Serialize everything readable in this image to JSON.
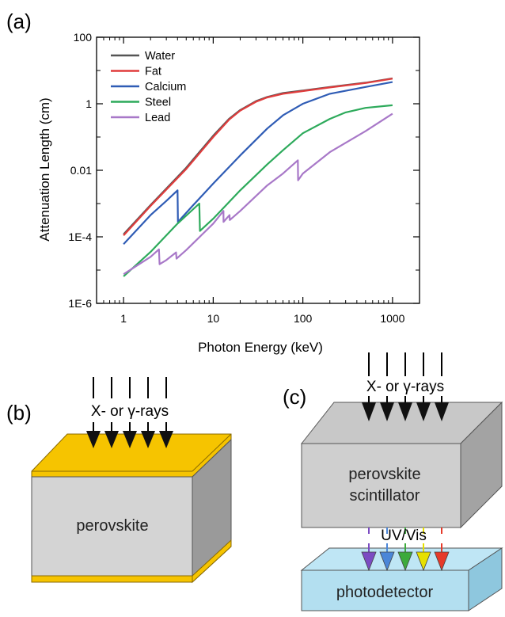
{
  "panels": {
    "a": "(a)",
    "b": "(b)",
    "c": "(c)"
  },
  "chart_data": {
    "type": "line",
    "title": "",
    "xlabel": "Photon Energy (keV)",
    "ylabel": "Attenuation Length (cm)",
    "xscale": "log",
    "yscale": "log",
    "xlim": [
      0.5,
      2000
    ],
    "ylim": [
      1e-06,
      100
    ],
    "xticks": [
      {
        "value": 1,
        "label": "1"
      },
      {
        "value": 10,
        "label": "10"
      },
      {
        "value": 100,
        "label": "100"
      },
      {
        "value": 1000,
        "label": "1000"
      }
    ],
    "yticks": [
      {
        "value": 1e-06,
        "label": "1E-6"
      },
      {
        "value": 0.0001,
        "label": "1E-4"
      },
      {
        "value": 0.01,
        "label": "0.01"
      },
      {
        "value": 1,
        "label": "1"
      },
      {
        "value": 100,
        "label": "100"
      }
    ],
    "grid": false,
    "legend_position": "top-left",
    "series": [
      {
        "name": "Water",
        "color": "#555555",
        "x": [
          1,
          2,
          5,
          10,
          15,
          20,
          30,
          40,
          60,
          100,
          200,
          500,
          1000
        ],
        "y": [
          0.00012,
          0.0009,
          0.012,
          0.11,
          0.35,
          0.65,
          1.2,
          1.6,
          2.1,
          2.5,
          3.2,
          4.3,
          5.8
        ]
      },
      {
        "name": "Fat",
        "color": "#e03c3c",
        "x": [
          1,
          2,
          5,
          10,
          15,
          20,
          30,
          40,
          60,
          100,
          200,
          500,
          1000
        ],
        "y": [
          0.00011,
          0.00085,
          0.011,
          0.1,
          0.33,
          0.62,
          1.15,
          1.55,
          2.0,
          2.4,
          3.1,
          4.2,
          5.7
        ]
      },
      {
        "name": "Calcium",
        "color": "#2f5cb5",
        "x": [
          1,
          2,
          3,
          4,
          4.04,
          6,
          10,
          20,
          40,
          60,
          100,
          200,
          500,
          1000
        ],
        "y": [
          6e-05,
          0.00045,
          0.0012,
          0.0025,
          0.00028,
          0.0009,
          0.004,
          0.028,
          0.18,
          0.45,
          1.0,
          2.0,
          3.2,
          4.5
        ]
      },
      {
        "name": "Steel",
        "color": "#2daa5b",
        "x": [
          1,
          2,
          4,
          7,
          7.11,
          10,
          20,
          40,
          60,
          100,
          200,
          300,
          500,
          1000
        ],
        "y": [
          6.5e-06,
          3.5e-05,
          0.00025,
          0.001,
          0.00015,
          0.00035,
          0.0025,
          0.015,
          0.04,
          0.13,
          0.35,
          0.55,
          0.75,
          0.9
        ]
      },
      {
        "name": "Lead",
        "color": "#a878c8",
        "x": [
          1,
          2,
          2.48,
          2.52,
          3,
          3.85,
          3.9,
          5,
          10,
          13.0,
          13.04,
          14,
          15.2,
          15.3,
          20,
          40,
          60,
          88,
          88.5,
          100,
          200,
          500,
          1000
        ],
        "y": [
          7.5e-06,
          2.5e-05,
          4.2e-05,
          1.5e-05,
          2e-05,
          3.4e-05,
          2.2e-05,
          4e-05,
          0.00025,
          0.0006,
          0.00028,
          0.00035,
          0.00045,
          0.00032,
          0.0006,
          0.0035,
          0.008,
          0.02,
          0.005,
          0.008,
          0.035,
          0.15,
          0.5
        ]
      }
    ]
  },
  "diagram_b": {
    "ray_label": "X-  or γ-rays",
    "block_label": "perovskite"
  },
  "diagram_c": {
    "ray_label": "X-  or γ-rays",
    "block_label_line1": "perovskite",
    "block_label_line2": "scintillator",
    "emission_label": "UV/Vis",
    "detector_label": "photodetector",
    "arrow_colors": [
      "#7b4bc2",
      "#4a86d8",
      "#3caa3c",
      "#e6e000",
      "#e63a2a"
    ]
  }
}
